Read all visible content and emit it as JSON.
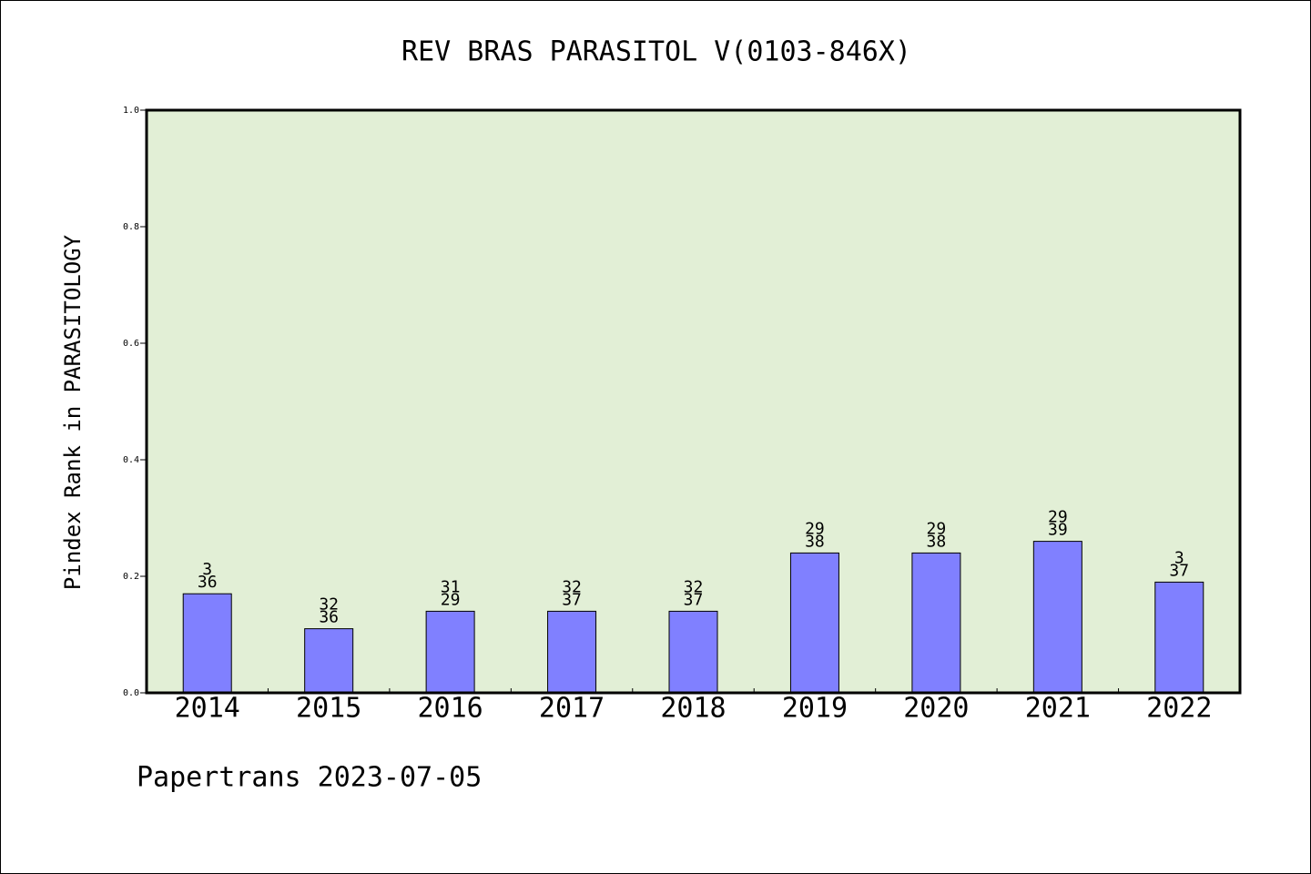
{
  "chart_data": {
    "type": "bar",
    "title": "REV BRAS PARASITOL V(0103-846X)",
    "ylabel": "Pindex Rank in PARASITOLOGY",
    "xlabel": "",
    "ylim": [
      0,
      1.0
    ],
    "yticks": [
      "0.0",
      "0.2",
      "0.4",
      "0.6",
      "0.8",
      "1.0"
    ],
    "categories": [
      "2014",
      "2015",
      "2016",
      "2017",
      "2018",
      "2019",
      "2020",
      "2021",
      "2022"
    ],
    "values": [
      0.17,
      0.11,
      0.14,
      0.14,
      0.14,
      0.24,
      0.24,
      0.26,
      0.19
    ],
    "label_top": [
      "3",
      "32",
      "31",
      "32",
      "32",
      "29",
      "29",
      "29",
      "3"
    ],
    "label_bottom": [
      "36",
      "36",
      "29",
      "37",
      "37",
      "38",
      "38",
      "39",
      "37"
    ],
    "grid": false,
    "legend": "none",
    "plot_background": "#e2efd6",
    "bar_color": "#8080ff"
  },
  "footer": "Papertrans 2023-07-05"
}
